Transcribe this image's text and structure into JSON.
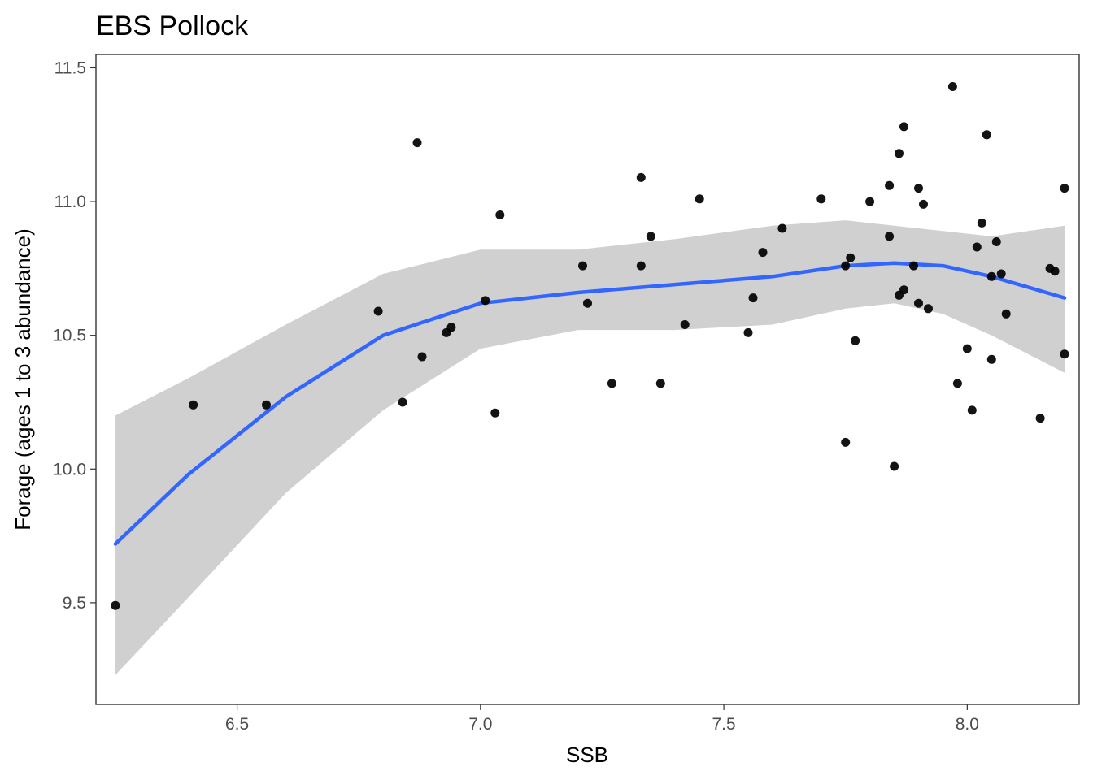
{
  "chart_data": {
    "type": "scatter",
    "title": "EBS Pollock",
    "xlabel": "SSB",
    "ylabel": "Forage (ages 1 to 3 abundance)",
    "xlim": [
      6.21,
      8.23
    ],
    "ylim": [
      9.12,
      11.55
    ],
    "xticks": [
      6.5,
      7.0,
      7.5,
      8.0
    ],
    "xtick_labels": [
      "6.5",
      "7.0",
      "7.5",
      "8.0"
    ],
    "yticks": [
      9.5,
      10.0,
      10.5,
      11.0,
      11.5
    ],
    "ytick_labels": [
      "9.5",
      "10.0",
      "10.5",
      "11.0",
      "11.5"
    ],
    "grid": false,
    "points": [
      {
        "x": 6.25,
        "y": 9.49
      },
      {
        "x": 6.41,
        "y": 10.24
      },
      {
        "x": 6.56,
        "y": 10.24
      },
      {
        "x": 6.79,
        "y": 10.59
      },
      {
        "x": 6.84,
        "y": 10.25
      },
      {
        "x": 6.87,
        "y": 11.22
      },
      {
        "x": 6.88,
        "y": 10.42
      },
      {
        "x": 6.93,
        "y": 10.51
      },
      {
        "x": 6.94,
        "y": 10.53
      },
      {
        "x": 7.01,
        "y": 10.63
      },
      {
        "x": 7.03,
        "y": 10.21
      },
      {
        "x": 7.04,
        "y": 10.95
      },
      {
        "x": 7.21,
        "y": 10.76
      },
      {
        "x": 7.22,
        "y": 10.62
      },
      {
        "x": 7.27,
        "y": 10.32
      },
      {
        "x": 7.33,
        "y": 11.09
      },
      {
        "x": 7.33,
        "y": 10.76
      },
      {
        "x": 7.35,
        "y": 10.87
      },
      {
        "x": 7.37,
        "y": 10.32
      },
      {
        "x": 7.42,
        "y": 10.54
      },
      {
        "x": 7.45,
        "y": 11.01
      },
      {
        "x": 7.55,
        "y": 10.51
      },
      {
        "x": 7.56,
        "y": 10.64
      },
      {
        "x": 7.58,
        "y": 10.81
      },
      {
        "x": 7.62,
        "y": 10.9
      },
      {
        "x": 7.7,
        "y": 11.01
      },
      {
        "x": 7.75,
        "y": 10.76
      },
      {
        "x": 7.75,
        "y": 10.1
      },
      {
        "x": 7.76,
        "y": 10.79
      },
      {
        "x": 7.77,
        "y": 10.48
      },
      {
        "x": 7.8,
        "y": 11.0
      },
      {
        "x": 7.84,
        "y": 11.06
      },
      {
        "x": 7.84,
        "y": 10.87
      },
      {
        "x": 7.85,
        "y": 10.01
      },
      {
        "x": 7.86,
        "y": 10.65
      },
      {
        "x": 7.87,
        "y": 10.67
      },
      {
        "x": 7.86,
        "y": 11.18
      },
      {
        "x": 7.87,
        "y": 11.28
      },
      {
        "x": 7.89,
        "y": 10.76
      },
      {
        "x": 7.9,
        "y": 11.05
      },
      {
        "x": 7.9,
        "y": 10.62
      },
      {
        "x": 7.91,
        "y": 10.99
      },
      {
        "x": 7.92,
        "y": 10.6
      },
      {
        "x": 7.97,
        "y": 11.43
      },
      {
        "x": 7.98,
        "y": 10.32
      },
      {
        "x": 8.0,
        "y": 10.45
      },
      {
        "x": 8.01,
        "y": 10.22
      },
      {
        "x": 8.02,
        "y": 10.83
      },
      {
        "x": 8.03,
        "y": 10.92
      },
      {
        "x": 8.04,
        "y": 11.25
      },
      {
        "x": 8.05,
        "y": 10.72
      },
      {
        "x": 8.05,
        "y": 10.41
      },
      {
        "x": 8.06,
        "y": 10.85
      },
      {
        "x": 8.07,
        "y": 10.73
      },
      {
        "x": 8.08,
        "y": 10.58
      },
      {
        "x": 8.15,
        "y": 10.19
      },
      {
        "x": 8.17,
        "y": 10.75
      },
      {
        "x": 8.18,
        "y": 10.74
      },
      {
        "x": 8.2,
        "y": 11.05
      },
      {
        "x": 8.2,
        "y": 10.43
      }
    ],
    "smooth": {
      "x": [
        6.25,
        6.4,
        6.6,
        6.8,
        7.0,
        7.2,
        7.4,
        7.6,
        7.75,
        7.85,
        7.95,
        8.05,
        8.2
      ],
      "y": [
        9.72,
        9.98,
        10.27,
        10.5,
        10.62,
        10.66,
        10.69,
        10.72,
        10.76,
        10.77,
        10.76,
        10.72,
        10.64
      ],
      "lower": [
        9.23,
        9.52,
        9.91,
        10.22,
        10.45,
        10.52,
        10.52,
        10.54,
        10.6,
        10.62,
        10.58,
        10.5,
        10.36
      ],
      "upper": [
        10.2,
        10.34,
        10.54,
        10.73,
        10.82,
        10.82,
        10.86,
        10.91,
        10.93,
        10.91,
        10.89,
        10.87,
        10.91
      ]
    },
    "colors": {
      "points": "#000000",
      "line": "#3366ff",
      "band": "#d0d0d0"
    }
  }
}
